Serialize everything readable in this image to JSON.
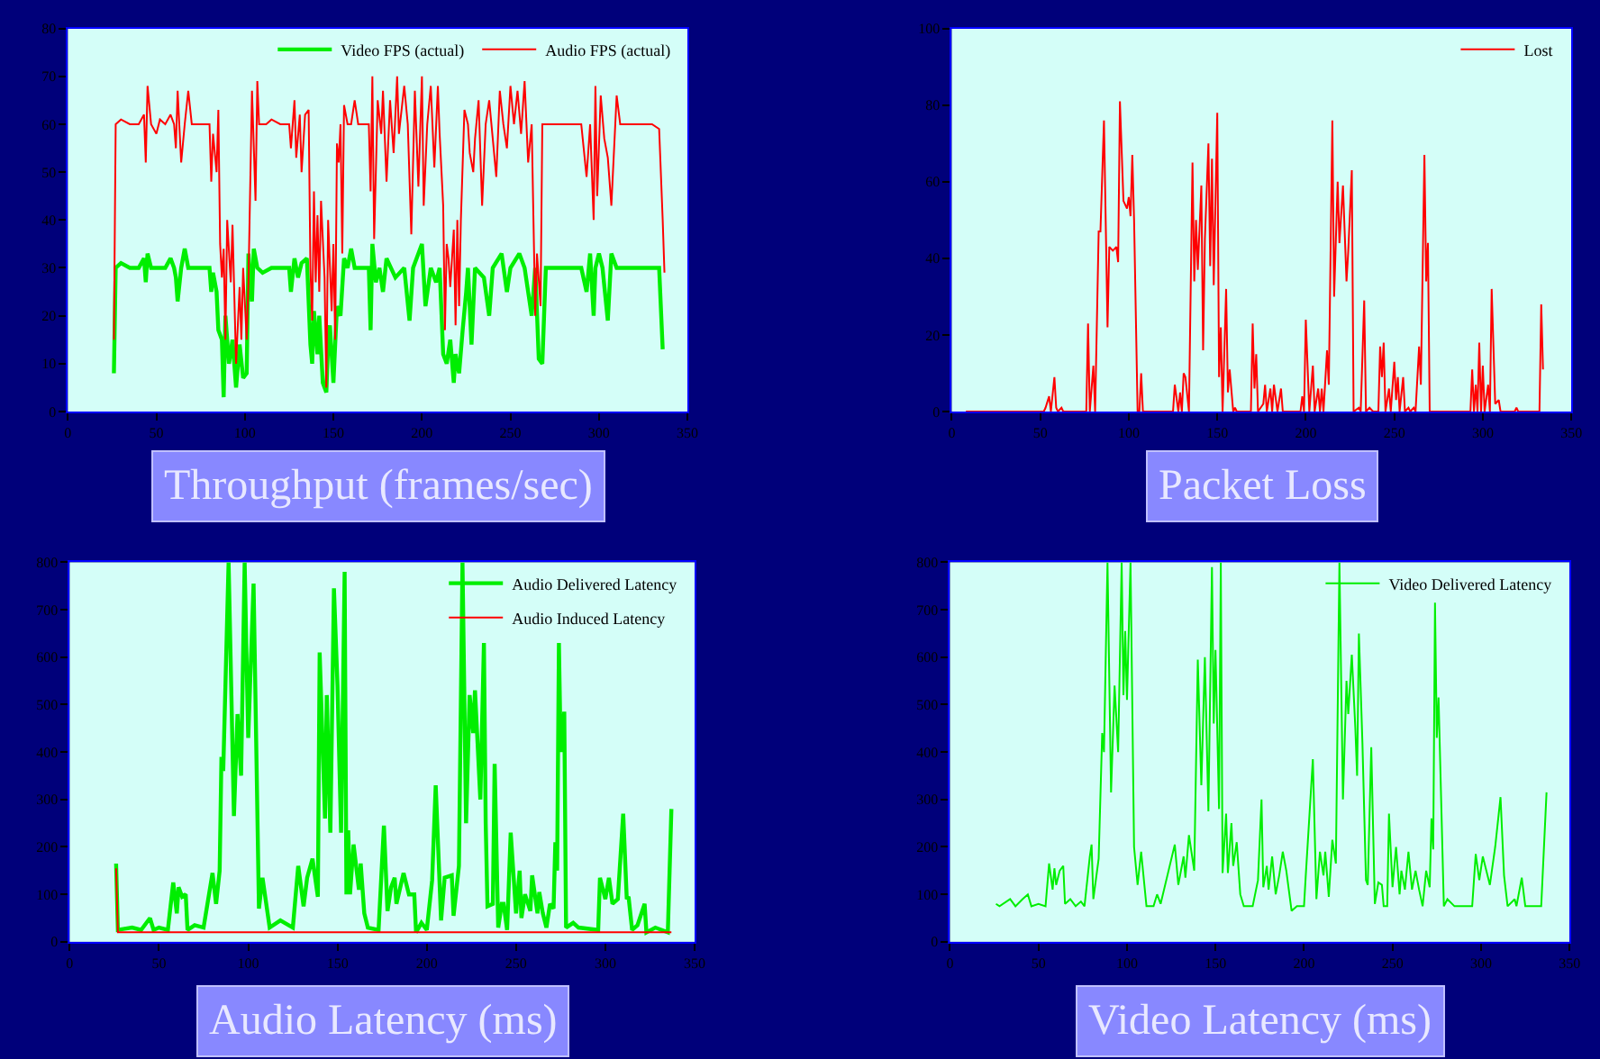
{
  "chart_data": [
    {
      "type": "line",
      "xlabel": "Throughput (frames/sec)",
      "xlim": [
        0,
        350
      ],
      "xticks": [
        0,
        50,
        100,
        150,
        200,
        250,
        300,
        350
      ],
      "ylim": [
        0,
        80
      ],
      "yticks": [
        0,
        10,
        20,
        30,
        40,
        50,
        60,
        70,
        80
      ],
      "grid": false,
      "legend": "top right",
      "series": [
        {
          "name": "Video FPS (actual)",
          "color": "#00ee00",
          "x": [
            26,
            27,
            30,
            35,
            40,
            43,
            44,
            45,
            47,
            55,
            58,
            60,
            61,
            62,
            64,
            66,
            68,
            80,
            81,
            82,
            84,
            85,
            87,
            88,
            89,
            91,
            93,
            95,
            97,
            99,
            101,
            102,
            104,
            105,
            107,
            110,
            115,
            125,
            126,
            128,
            130,
            132,
            135,
            137,
            138,
            139,
            141,
            142,
            144,
            146,
            147,
            148,
            150,
            152,
            154,
            156,
            158,
            160,
            162,
            170,
            171,
            172,
            174,
            176,
            178,
            180,
            185,
            190,
            193,
            195,
            200,
            202,
            205,
            208,
            210,
            212,
            214,
            216,
            218,
            219,
            221,
            223,
            225,
            226,
            228,
            230,
            235,
            238,
            240,
            245,
            248,
            250,
            255,
            258,
            262,
            264,
            266,
            268,
            269,
            270,
            280,
            290,
            293,
            295,
            297,
            298,
            300,
            302,
            305,
            307,
            310,
            320,
            330,
            334,
            336
          ],
          "values": [
            8,
            30,
            31,
            30,
            30,
            32,
            27,
            33,
            30,
            30,
            32,
            30,
            28,
            23,
            30,
            34,
            30,
            30,
            25,
            29,
            25,
            17,
            15,
            3,
            20,
            10,
            15,
            5,
            14,
            7,
            8,
            33,
            23,
            34,
            30,
            29,
            30,
            30,
            25,
            32,
            28,
            31,
            32,
            14,
            10,
            21,
            12,
            20,
            6,
            4,
            14,
            18,
            6,
            22,
            20,
            32,
            30,
            34,
            30,
            30,
            17,
            35,
            27,
            30,
            25,
            32,
            28,
            30,
            19,
            30,
            35,
            22,
            30,
            27,
            30,
            12,
            10,
            15,
            6,
            12,
            8,
            17,
            25,
            30,
            14,
            30,
            28,
            20,
            30,
            33,
            25,
            30,
            33,
            30,
            20,
            30,
            11,
            10,
            20,
            30,
            30,
            30,
            25,
            33,
            20,
            30,
            33,
            30,
            19,
            33,
            30,
            30,
            30,
            30,
            13
          ]
        },
        {
          "name": "Audio FPS (actual)",
          "color": "#ff0000",
          "x": [
            26,
            27,
            30,
            35,
            40,
            43,
            44,
            45,
            47,
            50,
            52,
            55,
            58,
            60,
            61,
            62,
            64,
            66,
            68,
            70,
            75,
            80,
            81,
            82,
            84,
            85,
            86,
            87,
            88,
            89,
            90,
            92,
            93,
            95,
            97,
            98,
            99,
            101,
            102,
            104,
            106,
            107,
            108,
            112,
            115,
            120,
            125,
            126,
            128,
            129,
            131,
            132,
            134,
            136,
            137,
            138,
            139,
            140,
            141,
            142,
            143,
            145,
            146,
            147,
            149,
            150,
            151,
            152,
            153,
            154,
            155,
            156,
            158,
            160,
            162,
            164,
            170,
            171,
            172,
            173,
            175,
            177,
            178,
            180,
            182,
            184,
            186,
            187,
            190,
            192,
            194,
            196,
            198,
            200,
            201,
            203,
            205,
            207,
            209,
            210,
            212,
            213,
            214,
            215,
            216,
            218,
            219,
            220,
            221,
            222,
            224,
            226,
            227,
            229,
            230,
            232,
            234,
            236,
            238,
            240,
            242,
            244,
            246,
            248,
            250,
            252,
            254,
            256,
            258,
            260,
            262,
            264,
            265,
            267,
            268,
            270,
            280,
            285,
            290,
            293,
            295,
            297,
            298,
            299,
            301,
            303,
            305,
            307,
            310,
            312,
            320,
            330,
            334,
            336,
            337
          ],
          "values": [
            15,
            60,
            61,
            60,
            60,
            62,
            52,
            68,
            60,
            58,
            61,
            60,
            62,
            60,
            55,
            67,
            52,
            60,
            67,
            60,
            60,
            60,
            48,
            58,
            50,
            63,
            35,
            28,
            34,
            15,
            40,
            27,
            39,
            10,
            26,
            15,
            30,
            15,
            27,
            67,
            44,
            69,
            60,
            60,
            61,
            60,
            60,
            55,
            65,
            53,
            62,
            50,
            62,
            63,
            30,
            19,
            46,
            27,
            41,
            25,
            44,
            28,
            5,
            40,
            21,
            35,
            15,
            56,
            52,
            60,
            33,
            64,
            60,
            60,
            65,
            60,
            60,
            46,
            70,
            36,
            65,
            58,
            67,
            48,
            65,
            54,
            70,
            58,
            68,
            60,
            37,
            67,
            47,
            70,
            43,
            60,
            68,
            51,
            68,
            58,
            43,
            17,
            35,
            32,
            26,
            38,
            18,
            40,
            22,
            40,
            63,
            60,
            54,
            50,
            57,
            65,
            43,
            60,
            65,
            57,
            49,
            67,
            60,
            55,
            68,
            60,
            67,
            58,
            69,
            52,
            60,
            20,
            33,
            22,
            60,
            60,
            60,
            60,
            60,
            49,
            60,
            40,
            68,
            45,
            66,
            57,
            53,
            43,
            66,
            60,
            60,
            60,
            59,
            40,
            29
          ]
        }
      ]
    },
    {
      "type": "line",
      "xlabel": "Packet Loss",
      "xlim": [
        0,
        350
      ],
      "xticks": [
        0,
        50,
        100,
        150,
        200,
        250,
        300,
        350
      ],
      "ylim": [
        0,
        100
      ],
      "yticks": [
        0,
        20,
        40,
        60,
        80,
        100
      ],
      "grid": false,
      "legend": "top right",
      "series": [
        {
          "name": "Lost",
          "color": "#ff0000",
          "x": [
            8,
            52,
            53,
            55,
            56,
            58,
            59,
            60,
            62,
            63,
            76,
            77,
            78,
            80,
            81,
            83,
            84,
            86,
            88,
            89,
            91,
            93,
            94,
            95,
            97,
            99,
            100,
            101,
            102,
            103,
            105,
            106,
            107,
            108,
            125,
            126,
            128,
            129,
            130,
            131,
            132,
            134,
            136,
            137,
            138,
            139,
            141,
            142,
            143,
            145,
            146,
            147,
            148,
            150,
            151,
            152,
            153,
            155,
            156,
            157,
            159,
            160,
            161,
            169,
            170,
            171,
            172,
            173,
            176,
            177,
            178,
            180,
            181,
            182,
            184,
            186,
            187,
            197,
            198,
            199,
            200,
            202,
            204,
            205,
            207,
            208,
            209,
            210,
            212,
            213,
            215,
            216,
            218,
            219,
            221,
            223,
            224,
            226,
            227,
            230,
            231,
            233,
            234,
            236,
            238,
            241,
            242,
            243,
            244,
            245,
            247,
            248,
            250,
            251,
            252,
            253,
            255,
            256,
            258,
            259,
            261,
            262,
            264,
            265,
            267,
            268,
            269,
            270,
            293,
            294,
            295,
            296,
            297,
            298,
            299,
            300,
            301,
            303,
            304,
            305,
            307,
            309,
            310,
            318,
            319,
            320,
            332,
            333,
            334
          ],
          "values": [
            0,
            0,
            1,
            4,
            0,
            9,
            1,
            0,
            1,
            0,
            0,
            23,
            0,
            12,
            0,
            47,
            47,
            76,
            22,
            43,
            42,
            43,
            39,
            81,
            55,
            53,
            56,
            51,
            67,
            50,
            0,
            0,
            10,
            0,
            0,
            7,
            0,
            5,
            0,
            10,
            9,
            0,
            65,
            34,
            50,
            37,
            59,
            16,
            45,
            70,
            38,
            66,
            33,
            78,
            9,
            22,
            0,
            32,
            5,
            11,
            0,
            1,
            0,
            0,
            23,
            6,
            15,
            0,
            2,
            7,
            0,
            6,
            0,
            7,
            0,
            6,
            0,
            0,
            4,
            0,
            24,
            0,
            12,
            0,
            6,
            0,
            6,
            0,
            16,
            7,
            76,
            30,
            60,
            44,
            59,
            34,
            42,
            63,
            0,
            1,
            0,
            29,
            0,
            1,
            0,
            0,
            17,
            9,
            18,
            0,
            6,
            0,
            13,
            3,
            9,
            0,
            9,
            0,
            1,
            0,
            1,
            0,
            17,
            7,
            67,
            34,
            44,
            0,
            0,
            11,
            0,
            7,
            0,
            18,
            0,
            12,
            0,
            7,
            0,
            32,
            2,
            3,
            0,
            0,
            1,
            0,
            0,
            28,
            11
          ]
        }
      ]
    },
    {
      "type": "line",
      "xlabel": "Audio Latency (ms)",
      "xlim": [
        0,
        350
      ],
      "xticks": [
        0,
        50,
        100,
        150,
        200,
        250,
        300,
        350
      ],
      "ylim": [
        0,
        800
      ],
      "yticks": [
        0,
        100,
        200,
        300,
        400,
        500,
        600,
        700,
        800
      ],
      "grid": false,
      "legend": "top right",
      "series": [
        {
          "name": "Audio Delivered Latency",
          "color": "#00ee00",
          "x": [
            26,
            27,
            30,
            35,
            40,
            43,
            45,
            47,
            50,
            55,
            58,
            60,
            61,
            63,
            65,
            66,
            68,
            70,
            75,
            80,
            82,
            84,
            85,
            86,
            89,
            92,
            94,
            96,
            98,
            99,
            100,
            103,
            106,
            108,
            112,
            118,
            125,
            128,
            131,
            133,
            136,
            139,
            140,
            143,
            144,
            146,
            148,
            150,
            152,
            154,
            155,
            156,
            157,
            159,
            162,
            163,
            165,
            167,
            173,
            176,
            178,
            180,
            182,
            183,
            187,
            190,
            193,
            194,
            197,
            200,
            203,
            205,
            208,
            210,
            214,
            215,
            218,
            220,
            222,
            224,
            226,
            227,
            230,
            232,
            233,
            234,
            237,
            238,
            240,
            242,
            243,
            245,
            247,
            250,
            252,
            253,
            255,
            258,
            259,
            262,
            263,
            265,
            267,
            269,
            271,
            272,
            273,
            274,
            275,
            277,
            278,
            282,
            285,
            296,
            297,
            300,
            302,
            304,
            307,
            310,
            312,
            313,
            315,
            318,
            322,
            323,
            328,
            335,
            337
          ],
          "values": [
            165,
            25,
            27,
            30,
            25,
            40,
            50,
            25,
            30,
            25,
            125,
            60,
            115,
            95,
            100,
            25,
            30,
            35,
            30,
            145,
            80,
            150,
            390,
            360,
            800,
            265,
            480,
            350,
            800,
            610,
            430,
            755,
            70,
            135,
            30,
            45,
            30,
            160,
            75,
            135,
            175,
            95,
            610,
            260,
            520,
            230,
            745,
            540,
            230,
            780,
            100,
            235,
            100,
            205,
            110,
            165,
            60,
            30,
            25,
            245,
            65,
            115,
            135,
            80,
            145,
            100,
            100,
            20,
            40,
            25,
            130,
            330,
            45,
            135,
            140,
            55,
            160,
            800,
            250,
            520,
            440,
            530,
            300,
            630,
            250,
            75,
            80,
            375,
            30,
            80,
            80,
            25,
            230,
            60,
            150,
            50,
            100,
            65,
            140,
            60,
            105,
            60,
            30,
            80,
            70,
            210,
            150,
            630,
            400,
            485,
            30,
            40,
            30,
            25,
            135,
            90,
            135,
            80,
            90,
            270,
            90,
            95,
            25,
            35,
            80,
            20,
            30,
            20,
            280
          ]
        },
        {
          "name": "Audio Induced Latency",
          "color": "#ff0000",
          "x": [
            26,
            27,
            337
          ],
          "values": [
            155,
            20,
            20
          ]
        }
      ]
    },
    {
      "type": "line",
      "xlabel": "Video Latency (ms)",
      "xlim": [
        0,
        350
      ],
      "xticks": [
        0,
        50,
        100,
        150,
        200,
        250,
        300,
        350
      ],
      "ylim": [
        0,
        800
      ],
      "yticks": [
        0,
        100,
        200,
        300,
        400,
        500,
        600,
        700,
        800
      ],
      "grid": false,
      "legend": "top right",
      "series": [
        {
          "name": "Video Delivered Latency",
          "color": "#00ee00",
          "x": [
            26,
            28,
            34,
            37,
            41,
            44,
            46,
            50,
            54,
            56,
            58,
            59,
            60,
            62,
            64,
            65,
            68,
            71,
            74,
            76,
            79,
            80,
            81,
            84,
            86,
            87,
            89,
            91,
            93,
            95,
            97,
            98,
            99,
            100,
            102,
            104,
            106,
            108,
            111,
            115,
            117,
            119,
            127,
            129,
            132,
            133,
            135,
            138,
            140,
            142,
            144,
            146,
            148,
            149,
            150,
            152,
            153,
            154,
            156,
            157,
            159,
            160,
            162,
            164,
            166,
            171,
            174,
            176,
            177,
            179,
            180,
            182,
            184,
            186,
            188,
            190,
            193,
            196,
            200,
            201,
            205,
            207,
            209,
            211,
            212,
            214,
            216,
            218,
            220,
            222,
            224,
            225,
            227,
            229,
            230,
            231,
            233,
            235,
            236,
            238,
            240,
            242,
            244,
            245,
            247,
            248,
            250,
            252,
            254,
            255,
            257,
            259,
            261,
            263,
            265,
            267,
            269,
            271,
            272,
            273,
            274,
            275,
            276,
            279,
            281,
            285,
            295,
            297,
            299,
            301,
            305,
            308,
            311,
            313,
            315,
            319,
            320,
            323,
            325,
            329,
            334,
            337
          ],
          "values": [
            80,
            75,
            90,
            75,
            90,
            100,
            75,
            80,
            75,
            165,
            110,
            155,
            120,
            150,
            160,
            80,
            90,
            75,
            85,
            75,
            180,
            205,
            90,
            175,
            440,
            400,
            800,
            315,
            540,
            400,
            800,
            520,
            655,
            510,
            800,
            200,
            120,
            190,
            75,
            75,
            100,
            80,
            205,
            120,
            180,
            135,
            225,
            150,
            595,
            330,
            600,
            275,
            790,
            460,
            615,
            280,
            800,
            145,
            270,
            145,
            250,
            160,
            210,
            100,
            75,
            75,
            130,
            300,
            115,
            160,
            110,
            180,
            100,
            140,
            190,
            150,
            65,
            75,
            75,
            140,
            385,
            90,
            190,
            140,
            190,
            95,
            215,
            165,
            800,
            300,
            550,
            480,
            605,
            450,
            350,
            650,
            420,
            130,
            120,
            410,
            80,
            125,
            120,
            75,
            75,
            270,
            115,
            200,
            100,
            150,
            110,
            190,
            110,
            150,
            110,
            75,
            150,
            115,
            260,
            195,
            715,
            430,
            515,
            75,
            90,
            75,
            75,
            185,
            130,
            180,
            120,
            200,
            305,
            140,
            75,
            90,
            75,
            135,
            75,
            75,
            75,
            315
          ]
        }
      ]
    }
  ]
}
